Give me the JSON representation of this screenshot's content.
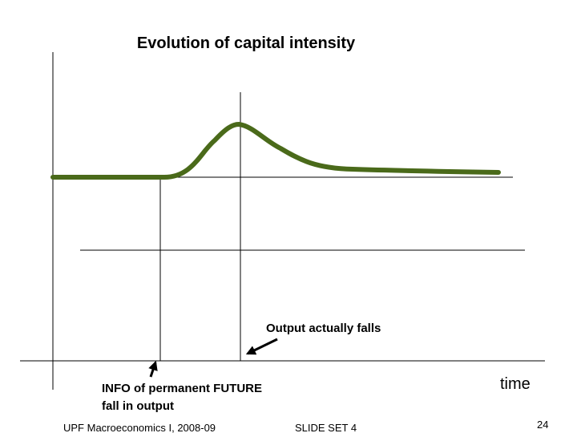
{
  "title": "Evolution of capital intensity",
  "annotations": {
    "output_falls": "Output actually falls",
    "info_line1": "INFO of permanent FUTURE",
    "info_line2": "fall in output",
    "x_axis_label": "time"
  },
  "footer": {
    "left": "UPF Macroeconomics I, 2008-09",
    "center": "SLIDE SET 4",
    "page": "24"
  }
}
